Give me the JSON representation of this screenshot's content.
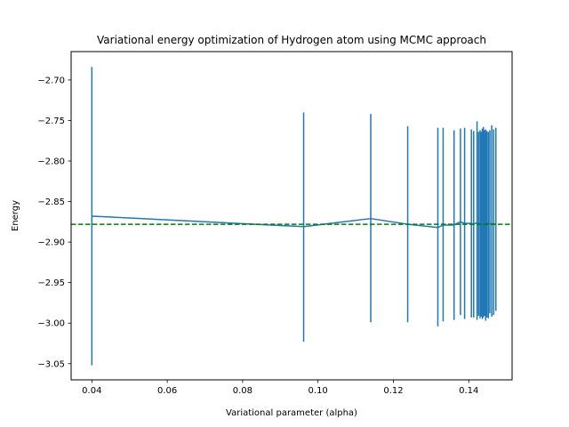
{
  "chart_data": {
    "type": "line",
    "title": "Variational energy optimization of Hydrogen atom using MCMC approach",
    "xlabel": "Variational parameter (alpha)",
    "ylabel": "Energy",
    "xlim": [
      0.0345,
      0.1515
    ],
    "ylim": [
      -3.07,
      -2.665
    ],
    "xticks": [
      0.04,
      0.06,
      0.08,
      0.1,
      0.12,
      0.14
    ],
    "xtick_labels": [
      "0.04",
      "0.06",
      "0.08",
      "0.10",
      "0.12",
      "0.14"
    ],
    "yticks": [
      -2.7,
      -2.75,
      -2.8,
      -2.85,
      -2.9,
      -2.95,
      -3.0,
      -3.05
    ],
    "ytick_labels": [
      "−2.70",
      "−2.75",
      "−2.80",
      "−2.85",
      "−2.90",
      "−2.95",
      "−3.00",
      "−3.05"
    ],
    "grid": false,
    "series": [
      {
        "color": "#1f77b4",
        "points": [
          {
            "x": 0.04,
            "y": -2.868,
            "err_low": -3.052,
            "err_high": -2.684
          },
          {
            "x": 0.0962,
            "y": -2.881,
            "err_low": -3.023,
            "err_high": -2.74
          },
          {
            "x": 0.114,
            "y": -2.871,
            "err_low": -2.999,
            "err_high": -2.742
          },
          {
            "x": 0.1238,
            "y": -2.878,
            "err_low": -2.999,
            "err_high": -2.757
          },
          {
            "x": 0.1318,
            "y": -2.882,
            "err_low": -3.004,
            "err_high": -2.759
          },
          {
            "x": 0.1332,
            "y": -2.879,
            "err_low": -2.998,
            "err_high": -2.759
          },
          {
            "x": 0.1361,
            "y": -2.879,
            "err_low": -2.996,
            "err_high": -2.762
          },
          {
            "x": 0.1378,
            "y": -2.875,
            "err_low": -2.99,
            "err_high": -2.76
          },
          {
            "x": 0.1389,
            "y": -2.877,
            "err_low": -2.995,
            "err_high": -2.759
          },
          {
            "x": 0.1407,
            "y": -2.877,
            "err_low": -2.993,
            "err_high": -2.761
          },
          {
            "x": 0.1413,
            "y": -2.878,
            "err_low": -2.993,
            "err_high": -2.763
          },
          {
            "x": 0.1422,
            "y": -2.876,
            "err_low": -2.996,
            "err_high": -2.751
          },
          {
            "x": 0.1426,
            "y": -2.878,
            "err_low": -2.991,
            "err_high": -2.764
          },
          {
            "x": 0.143,
            "y": -2.877,
            "err_low": -2.994,
            "err_high": -2.762
          },
          {
            "x": 0.1433,
            "y": -2.879,
            "err_low": -2.992,
            "err_high": -2.764
          },
          {
            "x": 0.1436,
            "y": -2.876,
            "err_low": -2.995,
            "err_high": -2.76
          },
          {
            "x": 0.1439,
            "y": -2.878,
            "err_low": -2.993,
            "err_high": -2.758
          },
          {
            "x": 0.1442,
            "y": -2.877,
            "err_low": -2.991,
            "err_high": -2.762
          },
          {
            "x": 0.1445,
            "y": -2.879,
            "err_low": -2.997,
            "err_high": -2.761
          },
          {
            "x": 0.1448,
            "y": -2.876,
            "err_low": -2.993,
            "err_high": -2.763
          },
          {
            "x": 0.1452,
            "y": -2.878,
            "err_low": -2.994,
            "err_high": -2.764
          },
          {
            "x": 0.1456,
            "y": -2.877,
            "err_low": -2.988,
            "err_high": -2.762
          },
          {
            "x": 0.1461,
            "y": -2.878,
            "err_low": -2.992,
            "err_high": -2.756
          },
          {
            "x": 0.1466,
            "y": -2.877,
            "err_low": -2.99,
            "err_high": -2.761
          },
          {
            "x": 0.1472,
            "y": -2.878,
            "err_low": -2.985,
            "err_high": -2.759
          }
        ]
      }
    ],
    "reference_line": {
      "y": -2.878,
      "color": "#008000",
      "style": "dashed"
    }
  }
}
